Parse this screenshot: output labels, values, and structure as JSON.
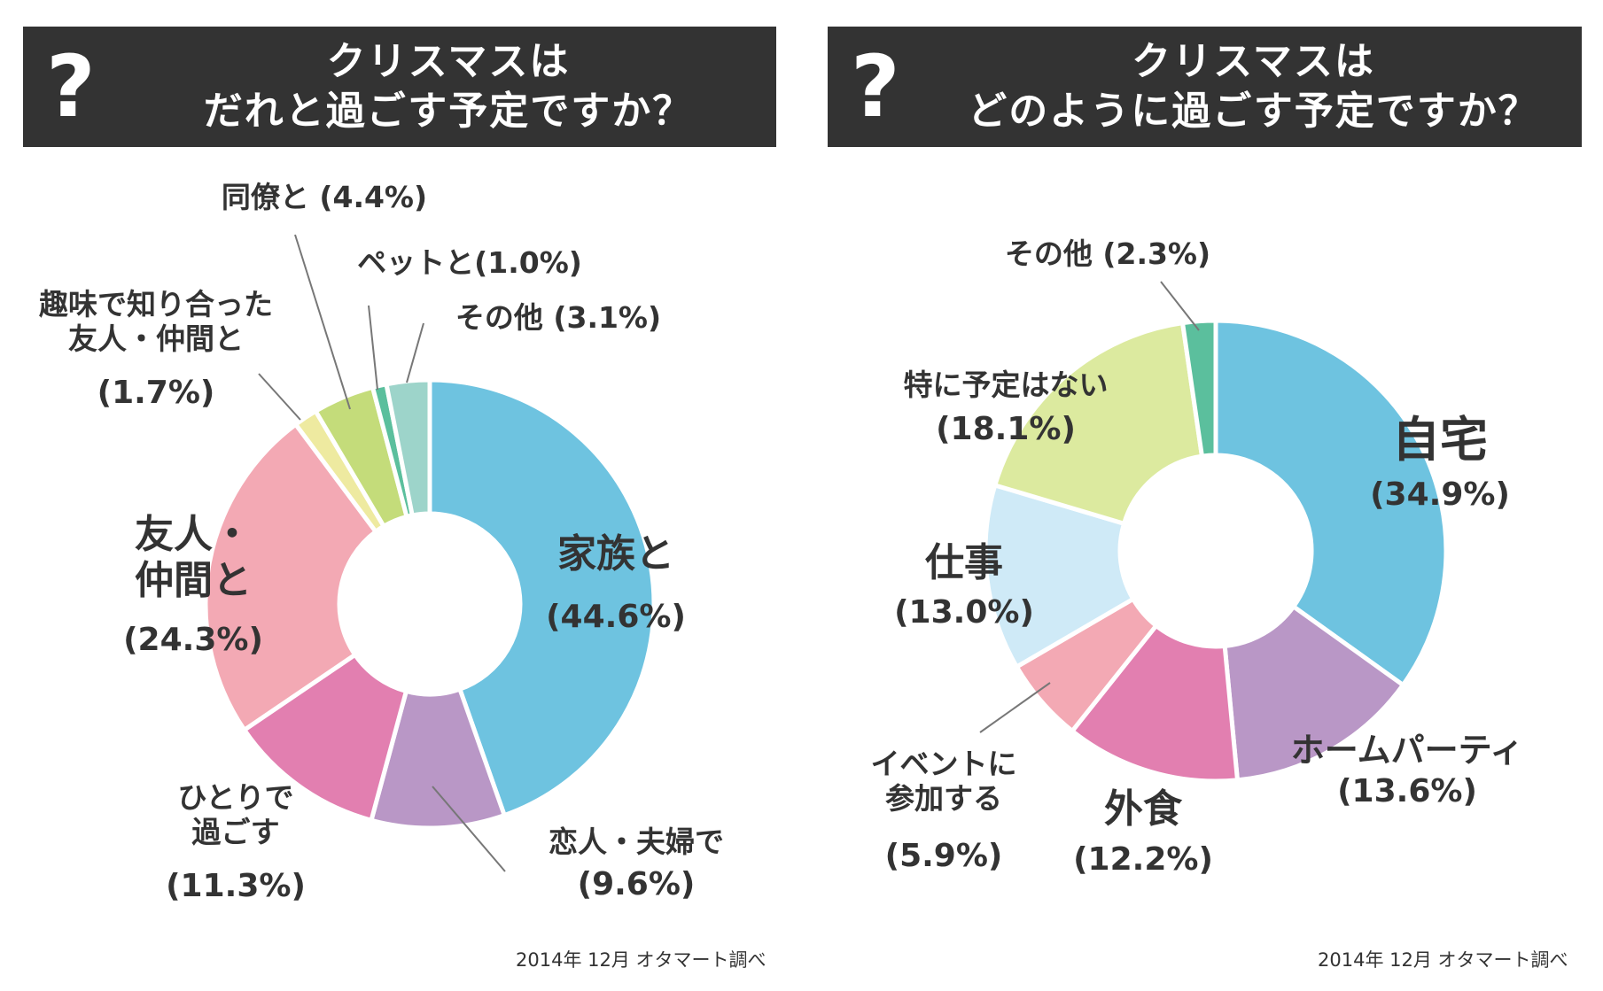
{
  "chart_data": [
    {
      "type": "pie",
      "title": "クリスマスは だれと過ごす予定ですか？",
      "title_lines": [
        "クリスマスは",
        "だれと過ごす予定ですか？"
      ],
      "credit": "2014年 12月 オタマート調べ",
      "slices": [
        {
          "name": "家族と",
          "value": 44.6,
          "pct": "(44.6%)",
          "color": "#6ec3e0"
        },
        {
          "name": "恋人・夫婦で",
          "value": 9.6,
          "pct": "(9.6%)",
          "color": "#b997c6"
        },
        {
          "name": "ひとりで過ごす",
          "value": 11.3,
          "pct": "(11.3%)",
          "color": "#e27fb0"
        },
        {
          "name": "友人・仲間と",
          "value": 24.3,
          "pct": "(24.3%)",
          "color": "#f3a9b4"
        },
        {
          "name": "趣味で知り合った友人・仲間と",
          "value": 1.7,
          "pct": "(1.7%)",
          "color": "#eeeaa0"
        },
        {
          "name": "同僚と",
          "value": 4.4,
          "pct": "(4.4%)",
          "color": "#c4dc7a"
        },
        {
          "name": "ペットと",
          "value": 1.0,
          "pct": "(1.0%)",
          "color": "#5bbf9d"
        },
        {
          "name": "その他",
          "value": 3.1,
          "pct": "(3.1%)",
          "color": "#9dd4ca"
        }
      ],
      "labels": [
        {
          "lines": [
            "家族と"
          ],
          "pct": "(44.6%)",
          "size": "large"
        },
        {
          "lines": [
            "恋人・夫婦で"
          ],
          "pct": "(9.6%)",
          "size": "small"
        },
        {
          "lines": [
            "ひとりで",
            "過ごす"
          ],
          "pct": "(11.3%)",
          "size": "small"
        },
        {
          "lines": [
            "友人・",
            "仲間と"
          ],
          "pct": "(24.3%)",
          "size": "large"
        },
        {
          "lines": [
            "趣味で知り合った",
            "友人・仲間と"
          ],
          "pct": "(1.7%)",
          "size": "small"
        },
        {
          "lines": [
            "同僚と (4.4%)"
          ],
          "pct": "",
          "size": "small"
        },
        {
          "lines": [
            "ペットと(1.0%)"
          ],
          "pct": "",
          "size": "small"
        },
        {
          "lines": [
            "その他 (3.1%)"
          ],
          "pct": "",
          "size": "small"
        }
      ]
    },
    {
      "type": "pie",
      "title": "クリスマスは どのように過ごす予定ですか？",
      "title_lines": [
        "クリスマスは",
        "どのように過ごす予定ですか？"
      ],
      "credit": "2014年 12月 オタマート調べ",
      "slices": [
        {
          "name": "自宅",
          "value": 34.9,
          "pct": "(34.9%)",
          "color": "#6ec3e0"
        },
        {
          "name": "ホームパーティ",
          "value": 13.6,
          "pct": "(13.6%)",
          "color": "#b997c6"
        },
        {
          "name": "外食",
          "value": 12.2,
          "pct": "(12.2%)",
          "color": "#e27fb0"
        },
        {
          "name": "イベントに参加する",
          "value": 5.9,
          "pct": "(5.9%)",
          "color": "#f3a9b4"
        },
        {
          "name": "仕事",
          "value": 13.0,
          "pct": "(13.0%)",
          "color": "#cfeaf7"
        },
        {
          "name": "特に予定はない",
          "value": 18.1,
          "pct": "(18.1%)",
          "color": "#dcea9f"
        },
        {
          "name": "その他",
          "value": 2.3,
          "pct": "(2.3%)",
          "color": "#5bbf9d"
        }
      ],
      "labels": [
        {
          "lines": [
            "自宅"
          ],
          "pct": "(34.9%)",
          "size": "xlarge"
        },
        {
          "lines": [
            "ホームパーティ"
          ],
          "pct": "(13.6%)",
          "size": "medium"
        },
        {
          "lines": [
            "外食"
          ],
          "pct": "(12.2%)",
          "size": "large"
        },
        {
          "lines": [
            "イベントに",
            "参加する"
          ],
          "pct": "(5.9%)",
          "size": "small"
        },
        {
          "lines": [
            "仕事"
          ],
          "pct": "(13.0%)",
          "size": "large"
        },
        {
          "lines": [
            "特に予定はない"
          ],
          "pct": "(18.1%)",
          "size": "small"
        },
        {
          "lines": [
            "その他 (2.3%)"
          ],
          "pct": "",
          "size": "small"
        }
      ]
    }
  ]
}
